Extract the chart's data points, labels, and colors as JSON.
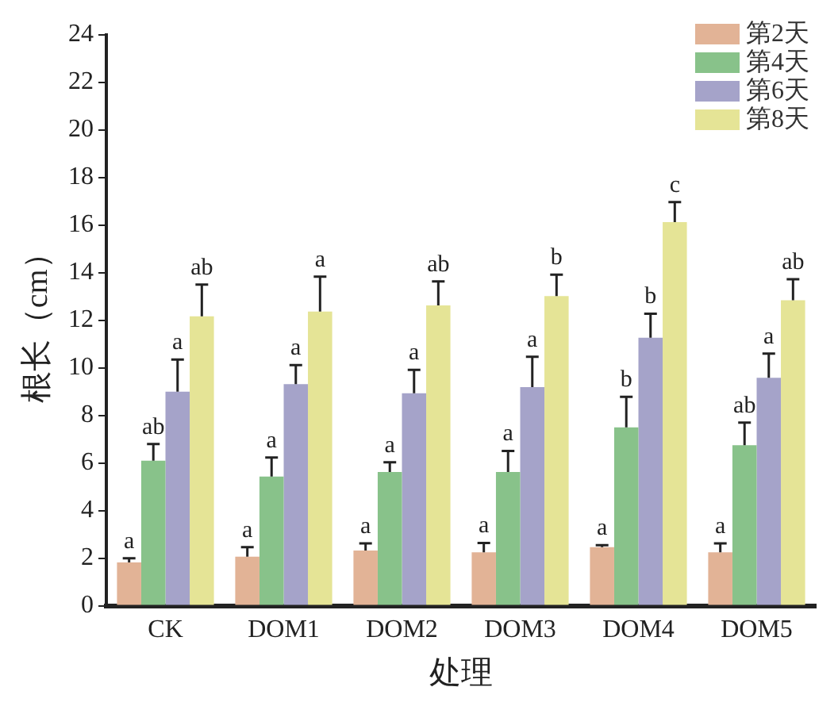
{
  "chart_data": {
    "type": "bar",
    "xlabel": "处理",
    "ylabel": "根长（cm）",
    "categories": [
      "CK",
      "DOM1",
      "DOM2",
      "DOM3",
      "DOM4",
      "DOM5"
    ],
    "ylim": [
      0,
      24
    ],
    "yticks": [
      0,
      2,
      4,
      6,
      8,
      10,
      12,
      14,
      16,
      18,
      20,
      22,
      24
    ],
    "grid": false,
    "legend": "top right",
    "series": [
      {
        "name": "第2天",
        "color": "#e2b396",
        "values": [
          1.82,
          2.06,
          2.32,
          2.25,
          2.46,
          2.25
        ],
        "errors": [
          [
            1.82,
            2.0
          ],
          [
            2.06,
            2.46
          ],
          [
            2.32,
            2.62
          ],
          [
            2.25,
            2.64
          ],
          [
            2.46,
            2.55
          ],
          [
            2.25,
            2.62
          ]
        ],
        "value_labels": [
          "a",
          "a",
          "a",
          "a",
          "a",
          "a"
        ]
      },
      {
        "name": "第4天",
        "color": "#88c28a",
        "values": [
          6.1,
          5.43,
          5.62,
          5.62,
          7.5,
          6.75
        ],
        "errors": [
          [
            6.1,
            6.8
          ],
          [
            5.43,
            6.23
          ],
          [
            5.62,
            6.03
          ],
          [
            5.62,
            6.51
          ],
          [
            7.5,
            8.78
          ],
          [
            6.75,
            7.7
          ]
        ],
        "value_labels": [
          "ab",
          "a",
          "a",
          "a",
          "b",
          "ab"
        ]
      },
      {
        "name": "第6天",
        "color": "#a5a3c9",
        "values": [
          9.0,
          9.32,
          8.93,
          9.19,
          11.27,
          9.58
        ],
        "errors": [
          [
            9.0,
            10.35
          ],
          [
            9.32,
            10.12
          ],
          [
            8.93,
            9.92
          ],
          [
            9.19,
            10.47
          ],
          [
            11.27,
            12.28
          ],
          [
            9.58,
            10.6
          ]
        ],
        "value_labels": [
          "a",
          "a",
          "a",
          "a",
          "b",
          "a"
        ]
      },
      {
        "name": "第8天",
        "color": "#e5e496",
        "values": [
          12.17,
          12.37,
          12.63,
          13.02,
          16.13,
          12.84
        ],
        "errors": [
          [
            12.17,
            13.5
          ],
          [
            12.37,
            13.84
          ],
          [
            12.63,
            13.64
          ],
          [
            13.02,
            13.92
          ],
          [
            16.13,
            16.97
          ],
          [
            12.84,
            13.73
          ]
        ],
        "value_labels": [
          "ab",
          "a",
          "ab",
          "b",
          "c",
          "ab"
        ]
      }
    ]
  }
}
